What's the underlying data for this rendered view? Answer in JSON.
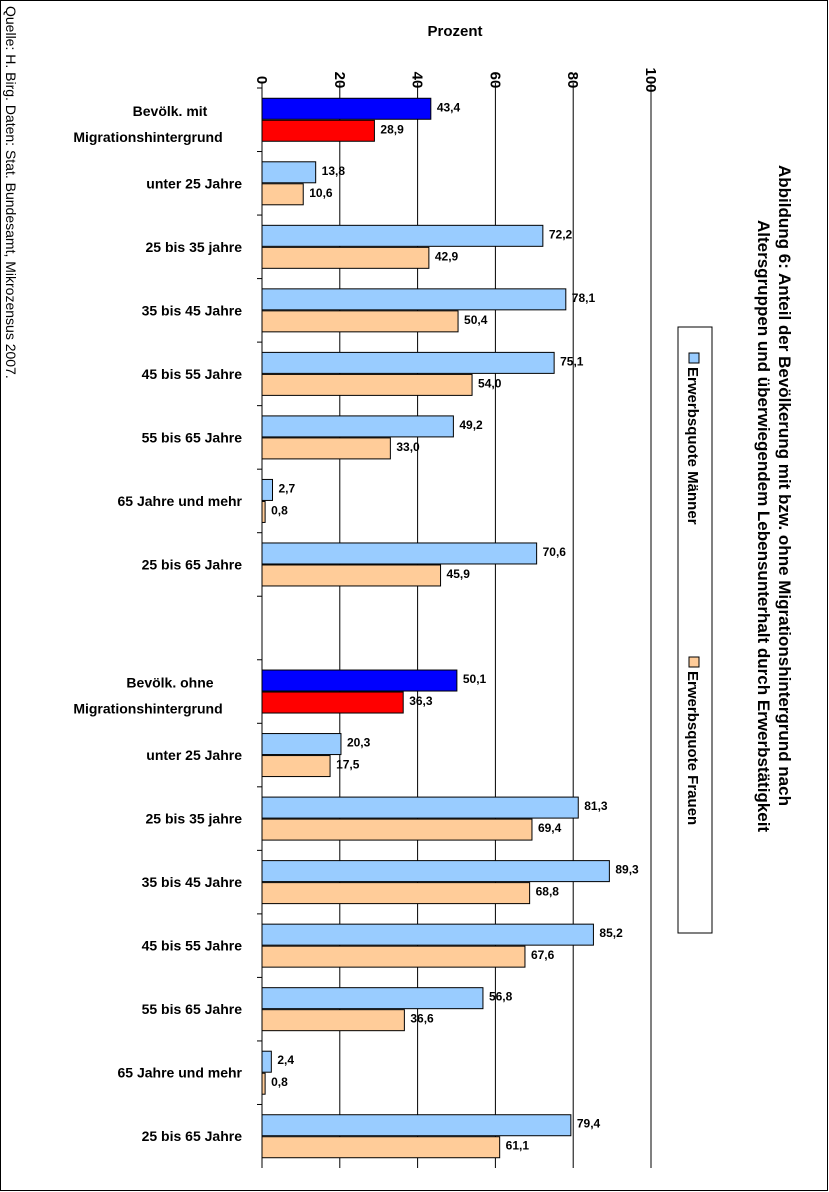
{
  "title_line1": "Abbildung 6: Anteil der Bevölkerung mit bzw. ohne Migrationshintergrund nach",
  "title_line2": "Altersgruppen und überwiegendem Lebensunterhalt durch Erwerbstätigkeit",
  "source": "Quelle: H. Birg. Daten: Stat. Bundesamt, Mikrozensus 2007.",
  "axis_label": "Prozent",
  "legend": [
    {
      "label": "Erwerbsquote Männer",
      "color": "#99ccff"
    },
    {
      "label": "Erwerbsquote Frauen",
      "color": "#ffcc99"
    }
  ],
  "colors": {
    "total_men": "#0000ff",
    "total_women": "#ff0000",
    "men": "#99ccff",
    "women": "#ffcc99",
    "border": "#000000"
  },
  "chart_data": {
    "type": "bar",
    "orientation": "horizontal",
    "xlabel": "Prozent",
    "xlim": [
      0,
      100
    ],
    "ticks": [
      0,
      20,
      40,
      60,
      80,
      100
    ],
    "grid": true,
    "groups": [
      {
        "label_line1": "Bevölk. mit",
        "label_line2": "Migrationshintergrund",
        "kind": "total",
        "men": 43.4,
        "women": 28.9,
        "men_label": "43,4",
        "women_label": "28,9"
      },
      {
        "label": "unter 25 Jahre",
        "kind": "age",
        "men": 13.8,
        "women": 10.6,
        "men_label": "13,8",
        "women_label": "10,6"
      },
      {
        "label": "25 bis 35 jahre",
        "kind": "age",
        "men": 72.2,
        "women": 42.9,
        "men_label": "72,2",
        "women_label": "42,9"
      },
      {
        "label": "35 bis 45 Jahre",
        "kind": "age",
        "men": 78.1,
        "women": 50.4,
        "men_label": "78,1",
        "women_label": "50,4"
      },
      {
        "label": "45 bis 55 Jahre",
        "kind": "age",
        "men": 75.1,
        "women": 54.0,
        "men_label": "75,1",
        "women_label": "54,0"
      },
      {
        "label": "55 bis 65 Jahre",
        "kind": "age",
        "men": 49.2,
        "women": 33.0,
        "men_label": "49,2",
        "women_label": "33,0"
      },
      {
        "label": "65 Jahre und mehr",
        "kind": "age",
        "men": 2.7,
        "women": 0.8,
        "men_label": "2,7",
        "women_label": "0,8"
      },
      {
        "label": "25 bis 65 Jahre",
        "kind": "age",
        "men": 70.6,
        "women": 45.9,
        "men_label": "70,6",
        "women_label": "45,9"
      },
      {
        "label": "",
        "kind": "gap"
      },
      {
        "label_line1": "Bevölk. ohne",
        "label_line2": "Migrationshintergrund",
        "kind": "total",
        "men": 50.1,
        "women": 36.3,
        "men_label": "50,1",
        "women_label": "36,3"
      },
      {
        "label": "unter 25 Jahre",
        "kind": "age",
        "men": 20.3,
        "women": 17.5,
        "men_label": "20,3",
        "women_label": "17,5"
      },
      {
        "label": "25 bis 35 jahre",
        "kind": "age",
        "men": 81.3,
        "women": 69.4,
        "men_label": "81,3",
        "women_label": "69,4"
      },
      {
        "label": "35 bis 45 Jahre",
        "kind": "age",
        "men": 89.3,
        "women": 68.8,
        "men_label": "89,3",
        "women_label": "68,8"
      },
      {
        "label": "45 bis 55 Jahre",
        "kind": "age",
        "men": 85.2,
        "women": 67.6,
        "men_label": "85,2",
        "women_label": "67,6"
      },
      {
        "label": "55 bis 65 Jahre",
        "kind": "age",
        "men": 56.8,
        "women": 36.6,
        "men_label": "56,8",
        "women_label": "36,6"
      },
      {
        "label": "65 Jahre und mehr",
        "kind": "age",
        "men": 2.4,
        "women": 0.8,
        "men_label": "2,4",
        "women_label": "0,8"
      },
      {
        "label": "25 bis 65 Jahre",
        "kind": "age",
        "men": 79.4,
        "women": 61.1,
        "men_label": "79,4",
        "women_label": "61,1"
      }
    ]
  }
}
